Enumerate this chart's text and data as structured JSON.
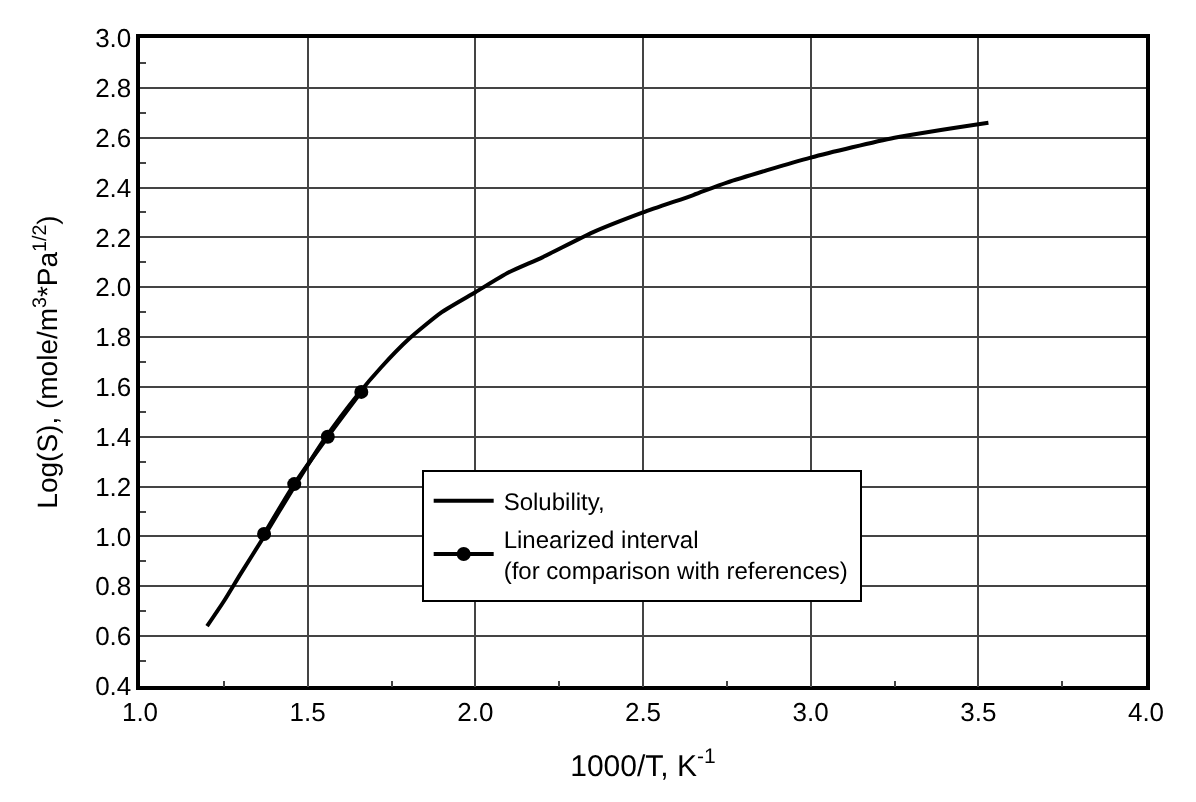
{
  "chart_data": {
    "type": "line",
    "x": [
      1.2,
      1.25,
      1.3,
      1.37,
      1.46,
      1.55,
      1.65,
      1.72,
      1.8,
      1.9,
      2.0,
      2.1,
      2.2,
      2.35,
      2.5,
      2.65,
      2.75,
      3.0,
      3.25,
      3.53
    ],
    "series": [
      {
        "name": "Solubility,",
        "color": "#000000",
        "marker": "none",
        "values": [
          0.64,
          0.74,
          0.85,
          1.0,
          1.2,
          1.39,
          1.57,
          1.68,
          1.79,
          1.9,
          1.98,
          2.06,
          2.12,
          2.22,
          2.3,
          2.37,
          2.42,
          2.52,
          2.6,
          2.66
        ]
      },
      {
        "name": "Linearized interval\n(for comparison with references)",
        "color": "#000000",
        "marker": "circle",
        "x": [
          1.37,
          1.46,
          1.56,
          1.66
        ],
        "values": [
          1.01,
          1.21,
          1.4,
          1.58
        ]
      }
    ],
    "xlabel": "1000/T, K$^{-1}$",
    "ylabel": "Log(S), (mole/m$^{3}$*Pa$^{1/2}$)",
    "xlim": [
      1.0,
      4.0
    ],
    "xticks": [
      {
        "value": 1.0,
        "label": "1.0"
      },
      1.5,
      {
        "value": 2.0,
        "label": "2.0"
      },
      2.5,
      {
        "value": 3.0,
        "label": "3.0"
      },
      3.5,
      {
        "value": 4.0,
        "label": "4.0"
      }
    ],
    "ylim": [
      0.4,
      3.0
    ],
    "yticks": [
      0.4,
      0.6,
      0.8,
      {
        "value": 1.0,
        "label": "1.0"
      },
      1.2,
      1.4,
      1.6,
      1.8,
      {
        "value": 2.0,
        "label": "2.0"
      },
      2.2,
      2.4,
      2.6,
      2.8,
      {
        "value": 3.0,
        "label": "3.0"
      }
    ],
    "grid": true,
    "legend": "bottom",
    "line_style": "solid"
  }
}
